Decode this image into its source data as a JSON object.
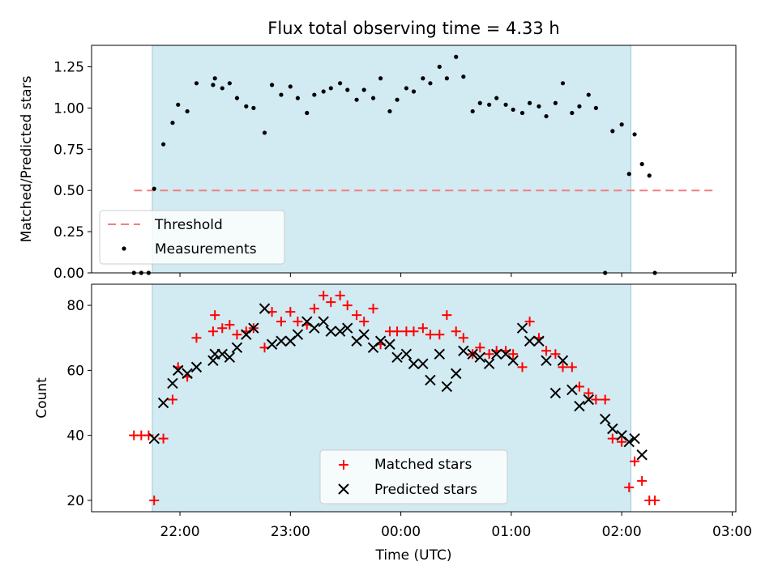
{
  "chart_data": [
    {
      "type": "scatter",
      "title": "Flux total observing time = 4.33 h",
      "xlabel": "",
      "ylabel": "Matched/Predicted stars",
      "ylim": [
        0.0,
        1.38
      ],
      "yticks": [
        0.0,
        0.25,
        0.5,
        0.75,
        1.0,
        1.25
      ],
      "ytick_labels": [
        "0.00",
        "0.25",
        "0.50",
        "0.75",
        "1.00",
        "1.25"
      ],
      "grid": false,
      "legend_position": "lower-left",
      "observing_window": [
        "21:45",
        "02:05"
      ],
      "threshold": {
        "name": "Threshold",
        "value": 0.5,
        "x_range": [
          "21:35",
          "02:50"
        ],
        "color": "#f08080"
      },
      "series": [
        {
          "name": "Measurements",
          "color": "#000000",
          "points": [
            [
              "21:35",
              0.0
            ],
            [
              "21:39",
              0.0
            ],
            [
              "21:43",
              0.0
            ],
            [
              "21:46",
              0.51
            ],
            [
              "21:51",
              0.78
            ],
            [
              "21:56",
              0.91
            ],
            [
              "21:59",
              1.02
            ],
            [
              "22:04",
              0.98
            ],
            [
              "22:09",
              1.15
            ],
            [
              "22:18",
              1.14
            ],
            [
              "22:19",
              1.18
            ],
            [
              "22:23",
              1.12
            ],
            [
              "22:27",
              1.15
            ],
            [
              "22:31",
              1.06
            ],
            [
              "22:36",
              1.01
            ],
            [
              "22:40",
              1.0
            ],
            [
              "22:46",
              0.85
            ],
            [
              "22:50",
              1.14
            ],
            [
              "22:55",
              1.08
            ],
            [
              "23:00",
              1.13
            ],
            [
              "23:04",
              1.06
            ],
            [
              "23:09",
              0.97
            ],
            [
              "23:13",
              1.08
            ],
            [
              "23:18",
              1.1
            ],
            [
              "23:22",
              1.12
            ],
            [
              "23:27",
              1.15
            ],
            [
              "23:31",
              1.11
            ],
            [
              "23:36",
              1.05
            ],
            [
              "23:40",
              1.11
            ],
            [
              "23:45",
              1.06
            ],
            [
              "23:49",
              1.18
            ],
            [
              "23:54",
              0.98
            ],
            [
              "23:58",
              1.05
            ],
            [
              "00:03",
              1.12
            ],
            [
              "00:07",
              1.1
            ],
            [
              "00:12",
              1.18
            ],
            [
              "00:16",
              1.15
            ],
            [
              "00:21",
              1.25
            ],
            [
              "00:25",
              1.18
            ],
            [
              "00:30",
              1.31
            ],
            [
              "00:34",
              1.19
            ],
            [
              "00:39",
              0.98
            ],
            [
              "00:43",
              1.03
            ],
            [
              "00:48",
              1.02
            ],
            [
              "00:52",
              1.06
            ],
            [
              "00:57",
              1.02
            ],
            [
              "01:01",
              0.99
            ],
            [
              "01:06",
              0.97
            ],
            [
              "01:10",
              1.03
            ],
            [
              "01:15",
              1.01
            ],
            [
              "01:19",
              0.95
            ],
            [
              "01:24",
              1.03
            ],
            [
              "01:28",
              1.15
            ],
            [
              "01:33",
              0.97
            ],
            [
              "01:37",
              1.01
            ],
            [
              "01:42",
              1.08
            ],
            [
              "01:46",
              1.0
            ],
            [
              "01:51",
              0.0
            ],
            [
              "01:55",
              0.86
            ],
            [
              "02:00",
              0.9
            ],
            [
              "02:04",
              0.6
            ],
            [
              "02:07",
              0.84
            ],
            [
              "02:11",
              0.66
            ],
            [
              "02:15",
              0.59
            ],
            [
              "02:18",
              0.0
            ]
          ]
        }
      ]
    },
    {
      "type": "scatter",
      "title": "",
      "xlabel": "Time (UTC)",
      "ylabel": "Count",
      "ylim": [
        16.5,
        86.5
      ],
      "yticks": [
        20,
        40,
        60,
        80
      ],
      "ytick_labels": [
        "20",
        "40",
        "60",
        "80"
      ],
      "xlim": [
        "21:12",
        "03:02"
      ],
      "xtick_labels": [
        "22:00",
        "23:00",
        "00:00",
        "01:00",
        "02:00",
        "03:00"
      ],
      "grid": false,
      "legend_position": "lower-center",
      "observing_window": [
        "21:45",
        "02:05"
      ],
      "series": [
        {
          "name": "Matched stars",
          "color": "#ff0000",
          "marker": "+",
          "points": [
            [
              "21:35",
              40
            ],
            [
              "21:39",
              40
            ],
            [
              "21:43",
              40
            ],
            [
              "21:46",
              20
            ],
            [
              "21:51",
              39
            ],
            [
              "21:56",
              51
            ],
            [
              "21:59",
              61
            ],
            [
              "22:04",
              58
            ],
            [
              "22:09",
              70
            ],
            [
              "22:18",
              72
            ],
            [
              "22:19",
              77
            ],
            [
              "22:23",
              73
            ],
            [
              "22:27",
              74
            ],
            [
              "22:31",
              71
            ],
            [
              "22:36",
              72
            ],
            [
              "22:40",
              73
            ],
            [
              "22:46",
              67
            ],
            [
              "22:50",
              78
            ],
            [
              "22:55",
              75
            ],
            [
              "23:00",
              78
            ],
            [
              "23:04",
              75
            ],
            [
              "23:09",
              74
            ],
            [
              "23:13",
              79
            ],
            [
              "23:18",
              83
            ],
            [
              "23:22",
              81
            ],
            [
              "23:27",
              83
            ],
            [
              "23:31",
              80
            ],
            [
              "23:36",
              77
            ],
            [
              "23:40",
              75
            ],
            [
              "23:45",
              79
            ],
            [
              "23:49",
              68
            ],
            [
              "23:54",
              72
            ],
            [
              "23:58",
              72
            ],
            [
              "00:03",
              72
            ],
            [
              "00:07",
              72
            ],
            [
              "00:12",
              73
            ],
            [
              "00:16",
              71
            ],
            [
              "00:21",
              71
            ],
            [
              "00:25",
              77
            ],
            [
              "00:30",
              72
            ],
            [
              "00:34",
              70
            ],
            [
              "00:39",
              65
            ],
            [
              "00:43",
              67
            ],
            [
              "00:48",
              65
            ],
            [
              "00:52",
              66
            ],
            [
              "00:57",
              66
            ],
            [
              "01:01",
              65
            ],
            [
              "01:06",
              61
            ],
            [
              "01:10",
              75
            ],
            [
              "01:15",
              70
            ],
            [
              "01:19",
              66
            ],
            [
              "01:24",
              65
            ],
            [
              "01:28",
              61
            ],
            [
              "01:33",
              61
            ],
            [
              "01:37",
              55
            ],
            [
              "01:42",
              53
            ],
            [
              "01:46",
              51
            ],
            [
              "01:51",
              51
            ],
            [
              "01:55",
              39
            ],
            [
              "02:00",
              38
            ],
            [
              "02:04",
              24
            ],
            [
              "02:07",
              32
            ],
            [
              "02:11",
              26
            ],
            [
              "02:15",
              20
            ],
            [
              "02:18",
              20
            ]
          ]
        },
        {
          "name": "Predicted stars",
          "color": "#000000",
          "marker": "x",
          "points": [
            [
              "21:46",
              39
            ],
            [
              "21:51",
              50
            ],
            [
              "21:56",
              56
            ],
            [
              "21:59",
              60
            ],
            [
              "22:04",
              59
            ],
            [
              "22:09",
              61
            ],
            [
              "22:18",
              63
            ],
            [
              "22:19",
              65
            ],
            [
              "22:23",
              65
            ],
            [
              "22:27",
              64
            ],
            [
              "22:31",
              67
            ],
            [
              "22:36",
              71
            ],
            [
              "22:40",
              73
            ],
            [
              "22:46",
              79
            ],
            [
              "22:50",
              68
            ],
            [
              "22:55",
              69
            ],
            [
              "23:00",
              69
            ],
            [
              "23:04",
              71
            ],
            [
              "23:09",
              75
            ],
            [
              "23:13",
              73
            ],
            [
              "23:18",
              75
            ],
            [
              "23:22",
              72
            ],
            [
              "23:27",
              72
            ],
            [
              "23:31",
              73
            ],
            [
              "23:36",
              69
            ],
            [
              "23:40",
              71
            ],
            [
              "23:45",
              67
            ],
            [
              "23:49",
              69
            ],
            [
              "23:54",
              68
            ],
            [
              "23:58",
              64
            ],
            [
              "00:03",
              65
            ],
            [
              "00:07",
              62
            ],
            [
              "00:12",
              62
            ],
            [
              "00:16",
              57
            ],
            [
              "00:21",
              65
            ],
            [
              "00:25",
              55
            ],
            [
              "00:30",
              59
            ],
            [
              "00:34",
              66
            ],
            [
              "00:39",
              65
            ],
            [
              "00:43",
              64
            ],
            [
              "00:48",
              62
            ],
            [
              "00:52",
              65
            ],
            [
              "00:57",
              65
            ],
            [
              "01:01",
              63
            ],
            [
              "01:06",
              73
            ],
            [
              "01:10",
              69
            ],
            [
              "01:15",
              69
            ],
            [
              "01:19",
              63
            ],
            [
              "01:24",
              53
            ],
            [
              "01:28",
              63
            ],
            [
              "01:33",
              54
            ],
            [
              "01:37",
              49
            ],
            [
              "01:42",
              51
            ],
            [
              "01:51",
              45
            ],
            [
              "01:55",
              42
            ],
            [
              "02:00",
              40
            ],
            [
              "02:04",
              38
            ],
            [
              "02:07",
              39
            ],
            [
              "02:11",
              34
            ]
          ]
        }
      ]
    }
  ]
}
